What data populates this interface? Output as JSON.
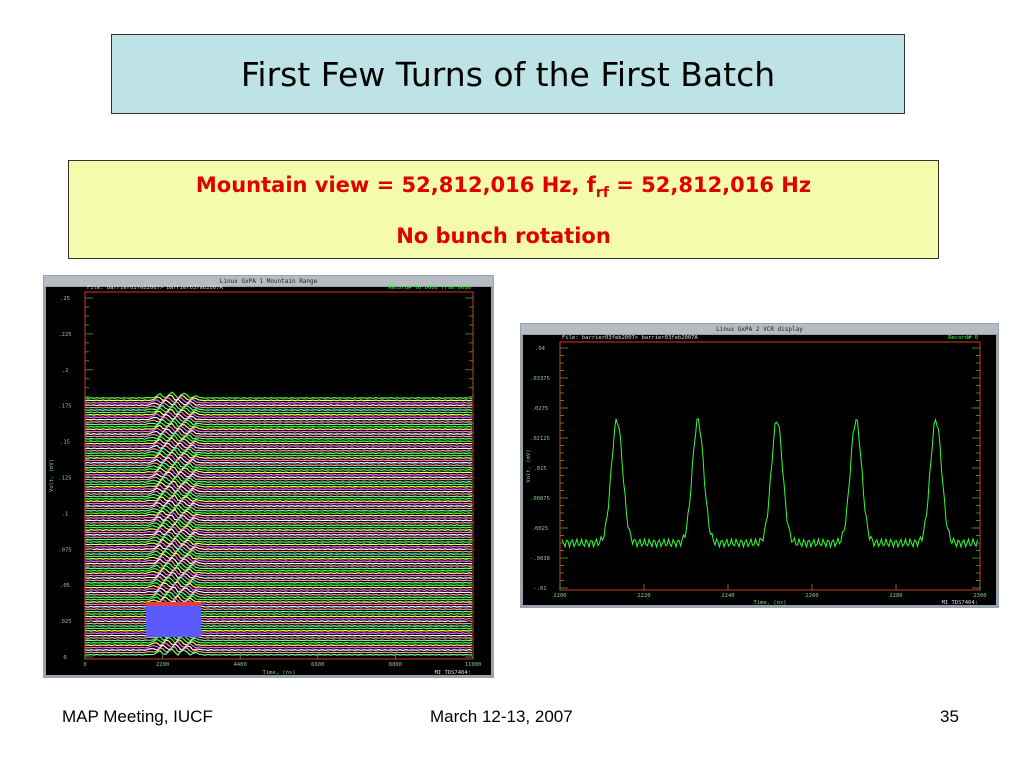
{
  "header": {
    "title": "First Few Turns of the First Batch"
  },
  "info": {
    "line1": {
      "before": "Mountain view = 52,812,016 Hz, f",
      "subscript": "rf",
      "after": " = 52,812,016 Hz"
    },
    "line2": "No bunch rotation"
  },
  "windows": [
    {
      "title": "Linux GxPA 1  Mountain Range",
      "file": "File: barrier03feb2007>  barrier03feb2007A",
      "record": "Record# to 0000 from 0000",
      "y_label": "Volt, (mV)",
      "x_label": "Time, (ns)",
      "scope": "MI TDS7404:",
      "yticks": [
        ".25",
        ".225",
        ".2",
        ".175",
        ".15",
        ".125",
        ".1",
        ".075",
        ".05",
        ".025",
        "0"
      ],
      "xticks": [
        "0",
        "2200",
        "4400",
        "6600",
        "8800",
        "11000"
      ]
    },
    {
      "title": "Linux GxPA 2  VCR display",
      "file": "File: barrier03feb2007>  barrier03feb2007A",
      "record": "Record#    0",
      "y_label": "Volt, (mV)",
      "x_label": "Time, (ns)",
      "scope": "MI TDS7404:",
      "yticks": [
        ".04",
        ".03375",
        ".0275",
        ".02125",
        ".015",
        ".00875",
        ".0025",
        "-.0038",
        "-.01"
      ],
      "xticks": [
        "2200",
        "2220",
        "2240",
        "2260",
        "2280",
        "2300"
      ]
    }
  ],
  "footer": {
    "left": "MAP Meeting, IUCF",
    "center": "March 12-13, 2007",
    "right": "35"
  }
}
